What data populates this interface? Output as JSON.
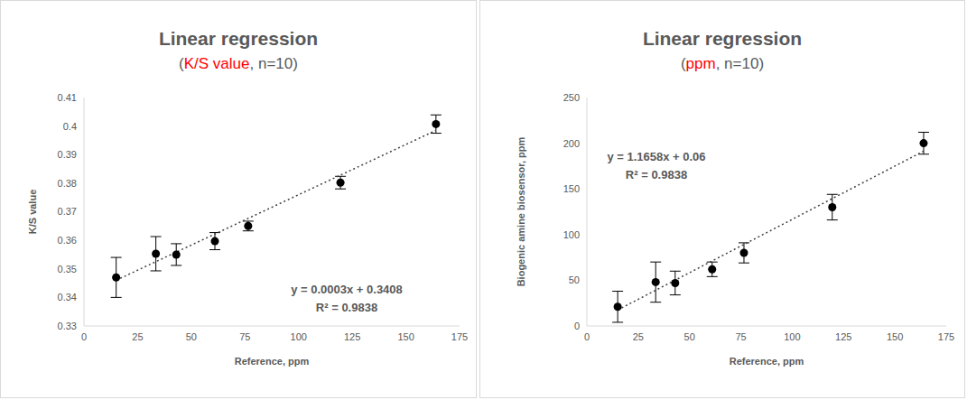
{
  "chart_data": [
    {
      "type": "scatter",
      "title": "Linear regression",
      "subtitle": "(K/S value, n=10)",
      "subtitle_highlight": "K/S value",
      "x_label": "Reference, ppm",
      "y_label": "K/S value",
      "x": [
        15,
        33.5,
        43,
        61,
        76.5,
        119.5,
        164
      ],
      "values": [
        0.347,
        0.3553,
        0.355,
        0.3597,
        0.365,
        0.3802,
        0.4007
      ],
      "errors": [
        0.007,
        0.006,
        0.0038,
        0.003,
        0.0017,
        0.0022,
        0.0032
      ],
      "color": "#000000",
      "marker": "circle",
      "trendline": {
        "x": [
          15,
          164
        ],
        "values": [
          0.346,
          0.3985
        ],
        "line_style": "dotted"
      },
      "annotations": [
        "y = 0.0003x + 0.3408",
        "R² = 0.9838"
      ],
      "xlim": [
        0,
        175
      ],
      "xticks": [
        0,
        25,
        50,
        75,
        100,
        125,
        150,
        175
      ],
      "ylim": [
        0.33,
        0.41
      ],
      "yticks": [
        0.33,
        0.34,
        0.35,
        0.36,
        0.37,
        0.38,
        0.39,
        0.4,
        0.41
      ],
      "grid": false
    },
    {
      "type": "scatter",
      "title": "Linear regression",
      "subtitle": "(ppm, n=10)",
      "subtitle_highlight": "ppm",
      "x_label": "Reference, ppm",
      "y_label": "Biogenic amine biosensor, ppm",
      "x": [
        15,
        33.5,
        43,
        61,
        76.5,
        119.5,
        164
      ],
      "values": [
        21,
        48,
        47,
        62,
        80,
        130,
        200
      ],
      "errors": [
        17,
        22,
        13,
        8,
        11,
        14,
        12
      ],
      "color": "#000000",
      "marker": "circle",
      "trendline": {
        "x": [
          15,
          164
        ],
        "values": [
          17.5,
          191.3
        ],
        "line_style": "dotted"
      },
      "annotations": [
        "y = 1.1658x + 0.06",
        "R² = 0.9838"
      ],
      "xlim": [
        0,
        175
      ],
      "xticks": [
        0,
        25,
        50,
        75,
        100,
        125,
        150,
        175
      ],
      "ylim": [
        0,
        250
      ],
      "yticks": [
        0,
        50,
        100,
        150,
        200,
        250
      ],
      "grid": false
    }
  ]
}
